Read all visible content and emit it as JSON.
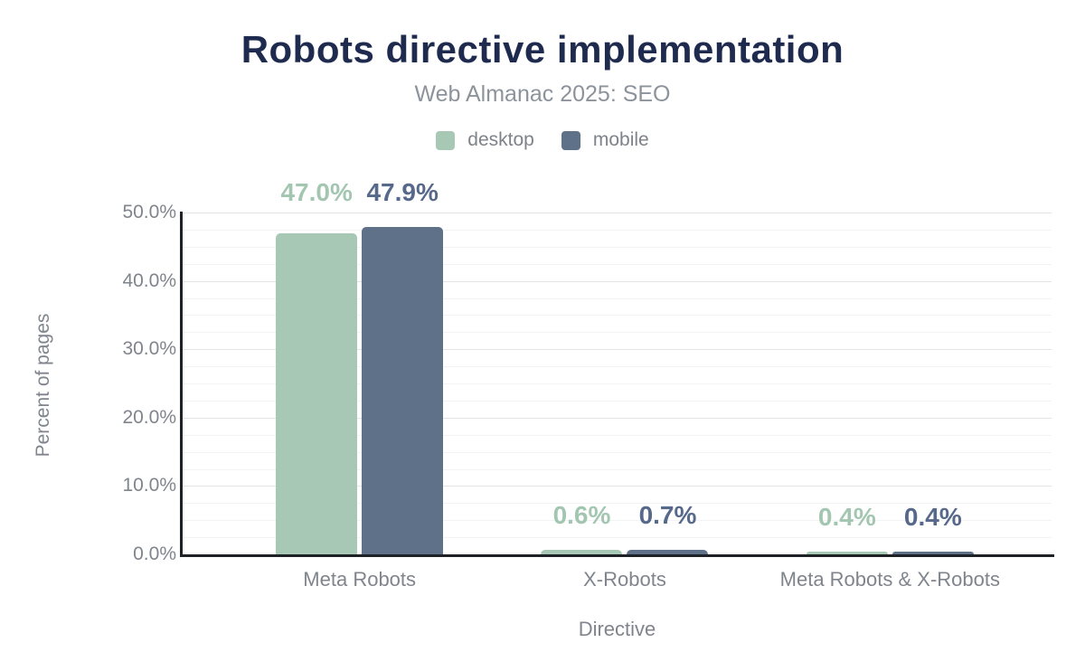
{
  "chart_data": {
    "type": "bar",
    "title": "Robots directive implementation",
    "subtitle": "Web Almanac 2025: SEO",
    "xlabel": "Directive",
    "ylabel": "Percent of pages",
    "ylim": [
      0,
      50
    ],
    "y_ticks": [
      {
        "value": 0,
        "label": "0.0%"
      },
      {
        "value": 10,
        "label": "10.0%"
      },
      {
        "value": 20,
        "label": "20.0%"
      },
      {
        "value": 30,
        "label": "30.0%"
      },
      {
        "value": 40,
        "label": "40.0%"
      },
      {
        "value": 50,
        "label": "50.0%"
      }
    ],
    "minor_gridline_step": 2.5,
    "major_gridline_step": 10,
    "grid": true,
    "legend_position": "top",
    "categories": [
      "Meta Robots",
      "X-Robots",
      "Meta Robots & X-Robots"
    ],
    "series": [
      {
        "name": "desktop",
        "color": "#a7c8b4",
        "label_color": "#a3c6b1",
        "values": [
          47.0,
          0.6,
          0.4
        ],
        "data_labels": [
          "47.0%",
          "0.6%",
          "0.4%"
        ]
      },
      {
        "name": "mobile",
        "color": "#5f7189",
        "label_color": "#57698a",
        "values": [
          47.9,
          0.7,
          0.4
        ],
        "data_labels": [
          "47.9%",
          "0.7%",
          "0.4%"
        ]
      }
    ],
    "colors": {
      "title": "#1f2b4e",
      "subtitle": "#8d939b",
      "axis_text": "#80848c",
      "axis_line": "#1e2126"
    }
  }
}
